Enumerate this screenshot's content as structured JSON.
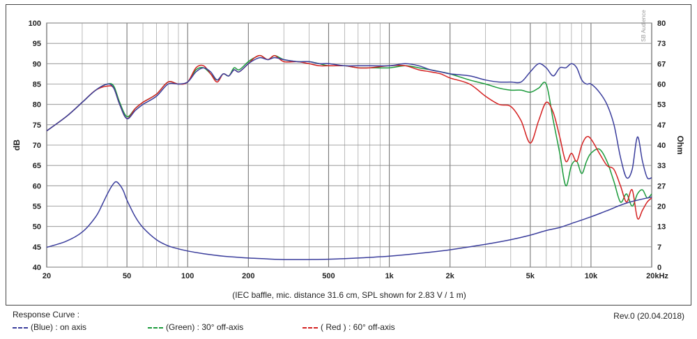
{
  "chart_data": {
    "type": "line",
    "title": "",
    "caption": "(IEC baffle, mic. distance 31.6 cm, SPL shown for 2.83 V / 1 m)",
    "xlabel": "",
    "ylabel": "dB",
    "y2label": "Ohm",
    "xscale": "log",
    "xlim": [
      20,
      20000
    ],
    "ylim": [
      40,
      100
    ],
    "y2lim": [
      0,
      80
    ],
    "grid": true,
    "x_ticks": [
      20,
      50,
      100,
      200,
      500,
      1000,
      2000,
      5000,
      10000,
      20000
    ],
    "x_tick_labels": [
      "20",
      "50",
      "100",
      "200",
      "500",
      "1k",
      "2k",
      "5k",
      "10k",
      "20kHz"
    ],
    "y_ticks": [
      40,
      45,
      50,
      55,
      60,
      65,
      70,
      75,
      80,
      85,
      90,
      95,
      100
    ],
    "y2_tick_labels": [
      "0",
      "7",
      "13",
      "20",
      "27",
      "33",
      "40",
      "47",
      "53",
      "60",
      "67",
      "73",
      "80"
    ],
    "series": [
      {
        "name": "(Blue) : on axis",
        "color": "#3a3d9c",
        "x": [
          20,
          25,
          30,
          35,
          40,
          43,
          46,
          50,
          55,
          60,
          70,
          80,
          90,
          100,
          110,
          120,
          130,
          140,
          150,
          160,
          170,
          180,
          200,
          215,
          230,
          250,
          270,
          300,
          350,
          400,
          450,
          500,
          600,
          700,
          800,
          1000,
          1200,
          1400,
          1600,
          1800,
          2000,
          2500,
          3000,
          3500,
          4000,
          4500,
          5000,
          5500,
          6000,
          6500,
          7000,
          7500,
          8000,
          8500,
          9000,
          9500,
          10000,
          11000,
          12000,
          13000,
          14000,
          15000,
          16000,
          17000,
          18000,
          19000,
          20000
        ],
        "values": [
          73.5,
          77,
          80.5,
          83.5,
          85,
          84,
          80,
          76.5,
          78.5,
          80,
          82,
          85,
          85,
          85.5,
          88,
          89,
          88,
          86,
          87.5,
          87,
          88.5,
          88,
          90,
          91,
          91.5,
          91,
          91.5,
          91,
          90.5,
          90.5,
          90,
          90,
          89.5,
          89.5,
          89.5,
          89.5,
          90,
          89.5,
          88.5,
          88,
          87.5,
          87,
          86,
          85.5,
          85.5,
          85.5,
          88,
          90,
          89,
          87,
          89,
          89,
          90,
          89,
          86,
          85,
          85,
          83,
          80,
          75,
          67,
          62,
          64,
          72,
          66,
          62,
          62
        ]
      },
      {
        "name": "(Green) : 30° off-axis",
        "color": "#1a9a3a",
        "x": [
          20,
          25,
          30,
          35,
          40,
          43,
          46,
          50,
          55,
          60,
          70,
          80,
          90,
          100,
          110,
          120,
          130,
          140,
          150,
          160,
          170,
          180,
          200,
          215,
          230,
          250,
          270,
          300,
          350,
          400,
          450,
          500,
          600,
          700,
          800,
          1000,
          1200,
          1400,
          1600,
          1800,
          2000,
          2500,
          3000,
          3500,
          4000,
          4500,
          5000,
          5500,
          6000,
          6500,
          7000,
          7500,
          8000,
          8500,
          9000,
          9500,
          10000,
          11000,
          12000,
          13000,
          14000,
          15000,
          16000,
          17000,
          18000,
          19000,
          20000
        ],
        "values": [
          73.5,
          77,
          80.5,
          83.5,
          85,
          84.5,
          80.5,
          77,
          79,
          80.5,
          82.5,
          85.5,
          85,
          85.5,
          88.5,
          89,
          87.5,
          86,
          87.5,
          87,
          89,
          88.5,
          90.5,
          91.5,
          92,
          91,
          92,
          91,
          90.5,
          90.5,
          90,
          89.5,
          89.5,
          89,
          89,
          89,
          89.5,
          89,
          88.5,
          88,
          87.5,
          86,
          85,
          84,
          83.5,
          83.5,
          83,
          84,
          85,
          76,
          68,
          60,
          65,
          66,
          63,
          66,
          68,
          69,
          66,
          61,
          56,
          58,
          55,
          58,
          59,
          57,
          58
        ]
      },
      {
        "name": "( Red ) : 60° off-axis",
        "color": "#d42020",
        "x": [
          20,
          25,
          30,
          35,
          40,
          43,
          46,
          50,
          55,
          60,
          70,
          80,
          90,
          100,
          110,
          120,
          130,
          140,
          150,
          160,
          170,
          180,
          200,
          215,
          230,
          250,
          270,
          300,
          350,
          400,
          450,
          500,
          600,
          700,
          800,
          1000,
          1200,
          1400,
          1600,
          1800,
          2000,
          2500,
          3000,
          3500,
          4000,
          4500,
          5000,
          5500,
          6000,
          6500,
          7000,
          7500,
          8000,
          8500,
          9000,
          9500,
          10000,
          11000,
          12000,
          13000,
          14000,
          15000,
          16000,
          17000,
          18000,
          19000,
          20000
        ],
        "values": [
          73.5,
          77,
          80.5,
          83.5,
          84.5,
          84,
          80,
          76.5,
          79,
          80.5,
          82.5,
          85.5,
          85,
          85.5,
          89,
          89.5,
          87.5,
          85.5,
          87.5,
          87,
          88.5,
          88,
          90,
          91.5,
          92,
          91,
          92,
          90.5,
          90.5,
          90,
          89.5,
          89.5,
          89.5,
          89,
          89,
          89.5,
          89.5,
          88.5,
          88,
          87.5,
          86.5,
          85,
          82,
          80,
          79.5,
          76,
          70.5,
          76,
          80.5,
          78,
          72,
          66,
          68,
          66,
          70,
          72,
          71.5,
          68,
          65,
          64,
          60,
          56,
          59,
          52,
          54,
          56,
          57
        ]
      },
      {
        "name": "Impedance",
        "axis": "y2",
        "color": "#3a3d9c",
        "x": [
          20,
          25,
          30,
          35,
          38,
          40,
          42,
          44,
          46,
          48,
          50,
          55,
          60,
          70,
          80,
          90,
          100,
          120,
          150,
          200,
          250,
          300,
          400,
          500,
          700,
          1000,
          1500,
          2000,
          3000,
          4000,
          5000,
          6000,
          7000,
          8000,
          10000,
          12000,
          15000,
          20000
        ],
        "values": [
          6.5,
          8.5,
          11.5,
          16.5,
          21,
          24,
          26.5,
          28,
          27,
          25,
          22,
          16.5,
          13,
          9,
          7,
          6,
          5.3,
          4.4,
          3.6,
          3,
          2.7,
          2.5,
          2.5,
          2.6,
          3,
          3.6,
          4.7,
          5.7,
          7.5,
          9,
          10.5,
          12,
          13,
          14.3,
          16.5,
          18.5,
          21,
          23
        ]
      }
    ]
  },
  "legend": {
    "title": "Response Curve :",
    "entries": [
      {
        "label": "(Blue)  : on axis",
        "color": "#3a3d9c"
      },
      {
        "label": "(Green) : 30° off-axis",
        "color": "#1a9a3a"
      },
      {
        "label": "( Red ) : 60° off-axis",
        "color": "#d42020"
      }
    ],
    "revision": "Rev.0 (20.04.2018)"
  },
  "watermark": "SB Audience"
}
